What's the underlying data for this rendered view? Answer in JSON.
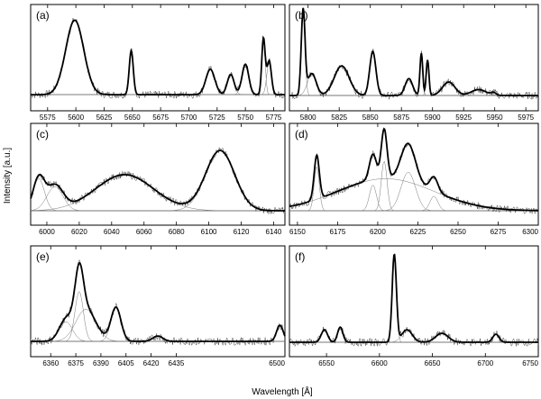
{
  "figure": {
    "ylabel": "Intensity [a.u.]",
    "xlabel": "Wavelength [Å]"
  },
  "chart_data": [
    {
      "type": "line",
      "label": "(a)",
      "xlim": [
        5560,
        5785
      ],
      "ticks": [
        5575,
        5600,
        5625,
        5650,
        5675,
        5700,
        5725,
        5750,
        5775
      ],
      "peaks": [
        [
          5599,
          0.88,
          8
        ],
        [
          5649,
          0.52,
          1.8
        ],
        [
          5719,
          0.3,
          4
        ],
        [
          5737,
          0.24,
          3
        ],
        [
          5750,
          0.36,
          3
        ],
        [
          5766,
          0.66,
          1.5
        ],
        [
          5771,
          0.4,
          2
        ]
      ],
      "baseline": 0.02
    },
    {
      "type": "line",
      "label": "(b)",
      "xlim": [
        5785,
        5985
      ],
      "ticks": [
        5800,
        5825,
        5850,
        5875,
        5900,
        5925,
        5950,
        5975
      ],
      "peaks": [
        [
          5796,
          1.0,
          1.5
        ],
        [
          5803,
          0.26,
          3.5
        ],
        [
          5827,
          0.35,
          6
        ],
        [
          5852,
          0.52,
          2.5
        ],
        [
          5881,
          0.2,
          3
        ],
        [
          5891,
          0.5,
          1.1
        ],
        [
          5896,
          0.42,
          1.1
        ],
        [
          5913,
          0.16,
          5
        ],
        [
          5937,
          0.07,
          6
        ],
        [
          5949,
          0.03,
          2
        ]
      ],
      "baseline": 0.01
    },
    {
      "type": "line",
      "label": "(c)",
      "xlim": [
        5990,
        6147
      ],
      "ticks": [
        6000,
        6020,
        6040,
        6060,
        6080,
        6100,
        6120,
        6140
      ],
      "peaks": [
        [
          5995,
          0.4,
          3.5
        ],
        [
          6005,
          0.3,
          5
        ],
        [
          6048,
          0.45,
          18
        ],
        [
          6107,
          0.75,
          9
        ]
      ],
      "baseline": 0.0
    },
    {
      "type": "line",
      "label": "(d)",
      "xlim": [
        6145,
        6300
      ],
      "ticks": [
        6150,
        6175,
        6200,
        6225,
        6250,
        6275,
        6300
      ],
      "peaks": [
        [
          6162,
          0.55,
          1.6
        ],
        [
          6197,
          0.32,
          2.2
        ],
        [
          6204,
          0.62,
          1.8
        ],
        [
          6219,
          0.48,
          4.5
        ],
        [
          6235,
          0.18,
          2.5
        ]
      ],
      "broad": [
        6205,
        0.4,
        30
      ],
      "baseline": 0.0
    },
    {
      "type": "line",
      "label": "(e)",
      "xlim": [
        6348,
        6500
      ],
      "ticks": [
        6360,
        6375,
        6390,
        6405,
        6420,
        6435,
        6500
      ],
      "peaks": [
        [
          6369,
          0.22,
          4
        ],
        [
          6377,
          0.56,
          2.5
        ],
        [
          6381,
          0.36,
          6
        ],
        [
          6399,
          0.38,
          3
        ],
        [
          6424,
          0.06,
          3
        ],
        [
          6497,
          0.18,
          2
        ]
      ],
      "baseline": 0.01
    },
    {
      "type": "line",
      "label": "(f)",
      "xlim": [
        6515,
        6750
      ],
      "ticks": [
        6550,
        6600,
        6650,
        6700,
        6750
      ],
      "peaks": [
        [
          6548,
          0.14,
          3
        ],
        [
          6563,
          0.17,
          2.5
        ],
        [
          6614,
          0.98,
          2
        ],
        [
          6626,
          0.14,
          5
        ],
        [
          6659,
          0.1,
          6
        ],
        [
          6710,
          0.09,
          3
        ]
      ],
      "baseline": 0.0
    }
  ]
}
